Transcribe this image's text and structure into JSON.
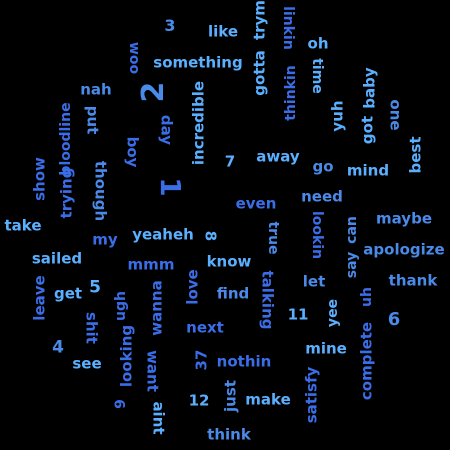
{
  "words": [
    {
      "text": "3",
      "color": "#4a8ae8"
    },
    {
      "text": "like",
      "color": "#5ab0ff"
    },
    {
      "text": "woo",
      "color": "#3a6ee8"
    },
    {
      "text": "something",
      "color": "#5ab0ff"
    },
    {
      "text": "gotta",
      "color": "#5ab0ff"
    },
    {
      "text": "tryma",
      "color": "#5ab0ff"
    },
    {
      "text": "linkin",
      "color": "#3a6ee8"
    },
    {
      "text": "thinkin",
      "color": "#3a6ee8"
    },
    {
      "text": "oh",
      "color": "#5ab0ff"
    },
    {
      "text": "time",
      "color": "#5ab0ff"
    },
    {
      "text": "nah",
      "color": "#4a8ae8"
    },
    {
      "text": "2",
      "color": "#4a8ae8"
    },
    {
      "text": "bloodline",
      "color": "#3a6ee8"
    },
    {
      "text": "put",
      "color": "#4a8ae8"
    },
    {
      "text": "incredible",
      "color": "#5ab0ff"
    },
    {
      "text": "day",
      "color": "#3a6ee8"
    },
    {
      "text": "yuh",
      "color": "#5ab0ff"
    },
    {
      "text": "got",
      "color": "#5ab0ff"
    },
    {
      "text": "baby",
      "color": "#5ab0ff"
    },
    {
      "text": "one",
      "color": "#4a8ae8"
    },
    {
      "text": "boy",
      "color": "#3a6ee8"
    },
    {
      "text": "7",
      "color": "#5ab0ff"
    },
    {
      "text": "away",
      "color": "#5ab0ff"
    },
    {
      "text": "go",
      "color": "#4a8ae8"
    },
    {
      "text": "mind",
      "color": "#5ab0ff"
    },
    {
      "text": "best",
      "color": "#5ab0ff"
    },
    {
      "text": "show",
      "color": "#3a6ee8"
    },
    {
      "text": "trying",
      "color": "#3a6ee8"
    },
    {
      "text": "though",
      "color": "#4a8ae8"
    },
    {
      "text": "1",
      "color": "#3a6ee8"
    },
    {
      "text": "need",
      "color": "#4a8ae8"
    },
    {
      "text": "even",
      "color": "#3a6ee8"
    },
    {
      "text": "take",
      "color": "#5ab0ff"
    },
    {
      "text": "maybe",
      "color": "#4a8ae8"
    },
    {
      "text": "lookin",
      "color": "#3a6ee8"
    },
    {
      "text": "say",
      "color": "#4a8ae8"
    },
    {
      "text": "can",
      "color": "#4a8ae8"
    },
    {
      "text": "my",
      "color": "#3a6ee8"
    },
    {
      "text": "yeaheh",
      "color": "#5ab0ff"
    },
    {
      "text": "8",
      "color": "#5ab0ff"
    },
    {
      "text": "true",
      "color": "#4a8ae8"
    },
    {
      "text": "apologize",
      "color": "#4a8ae8"
    },
    {
      "text": "sailed",
      "color": "#5ab0ff"
    },
    {
      "text": "mmm",
      "color": "#3a6ee8"
    },
    {
      "text": "know",
      "color": "#5ab0ff"
    },
    {
      "text": "thank",
      "color": "#4a8ae8"
    },
    {
      "text": "let",
      "color": "#4a8ae8"
    },
    {
      "text": "leave",
      "color": "#3a6ee8"
    },
    {
      "text": "get",
      "color": "#5ab0ff"
    },
    {
      "text": "5",
      "color": "#5ab0ff"
    },
    {
      "text": "ugh",
      "color": "#3a6ee8"
    },
    {
      "text": "wanna",
      "color": "#3a6ee8"
    },
    {
      "text": "love",
      "color": "#3a6ee8"
    },
    {
      "text": "find",
      "color": "#4a8ae8"
    },
    {
      "text": "talking",
      "color": "#3a6ee8"
    },
    {
      "text": "complete",
      "color": "#3a6ee8"
    },
    {
      "text": "uh",
      "color": "#3a6ee8"
    },
    {
      "text": "yee",
      "color": "#5ab0ff"
    },
    {
      "text": "6",
      "color": "#4a8ae8"
    },
    {
      "text": "11",
      "color": "#5ab0ff"
    },
    {
      "text": "shit",
      "color": "#3a6ee8"
    },
    {
      "text": "next",
      "color": "#3a6ee8"
    },
    {
      "text": "4",
      "color": "#4a8ae8"
    },
    {
      "text": "mine",
      "color": "#5ab0ff"
    },
    {
      "text": "see",
      "color": "#5ab0ff"
    },
    {
      "text": "looking",
      "color": "#3a6ee8"
    },
    {
      "text": "want",
      "color": "#3a6ee8"
    },
    {
      "text": "37",
      "color": "#3a6ee8"
    },
    {
      "text": "nothin",
      "color": "#3a6ee8"
    },
    {
      "text": "satisfy",
      "color": "#3a6ee8"
    },
    {
      "text": "9",
      "color": "#3a6ee8"
    },
    {
      "text": "aint",
      "color": "#5ab0ff"
    },
    {
      "text": "12",
      "color": "#5ab0ff"
    },
    {
      "text": "just",
      "color": "#4a8ae8"
    },
    {
      "text": "make",
      "color": "#5ab0ff"
    },
    {
      "text": "think",
      "color": "#4a8ae8"
    }
  ]
}
